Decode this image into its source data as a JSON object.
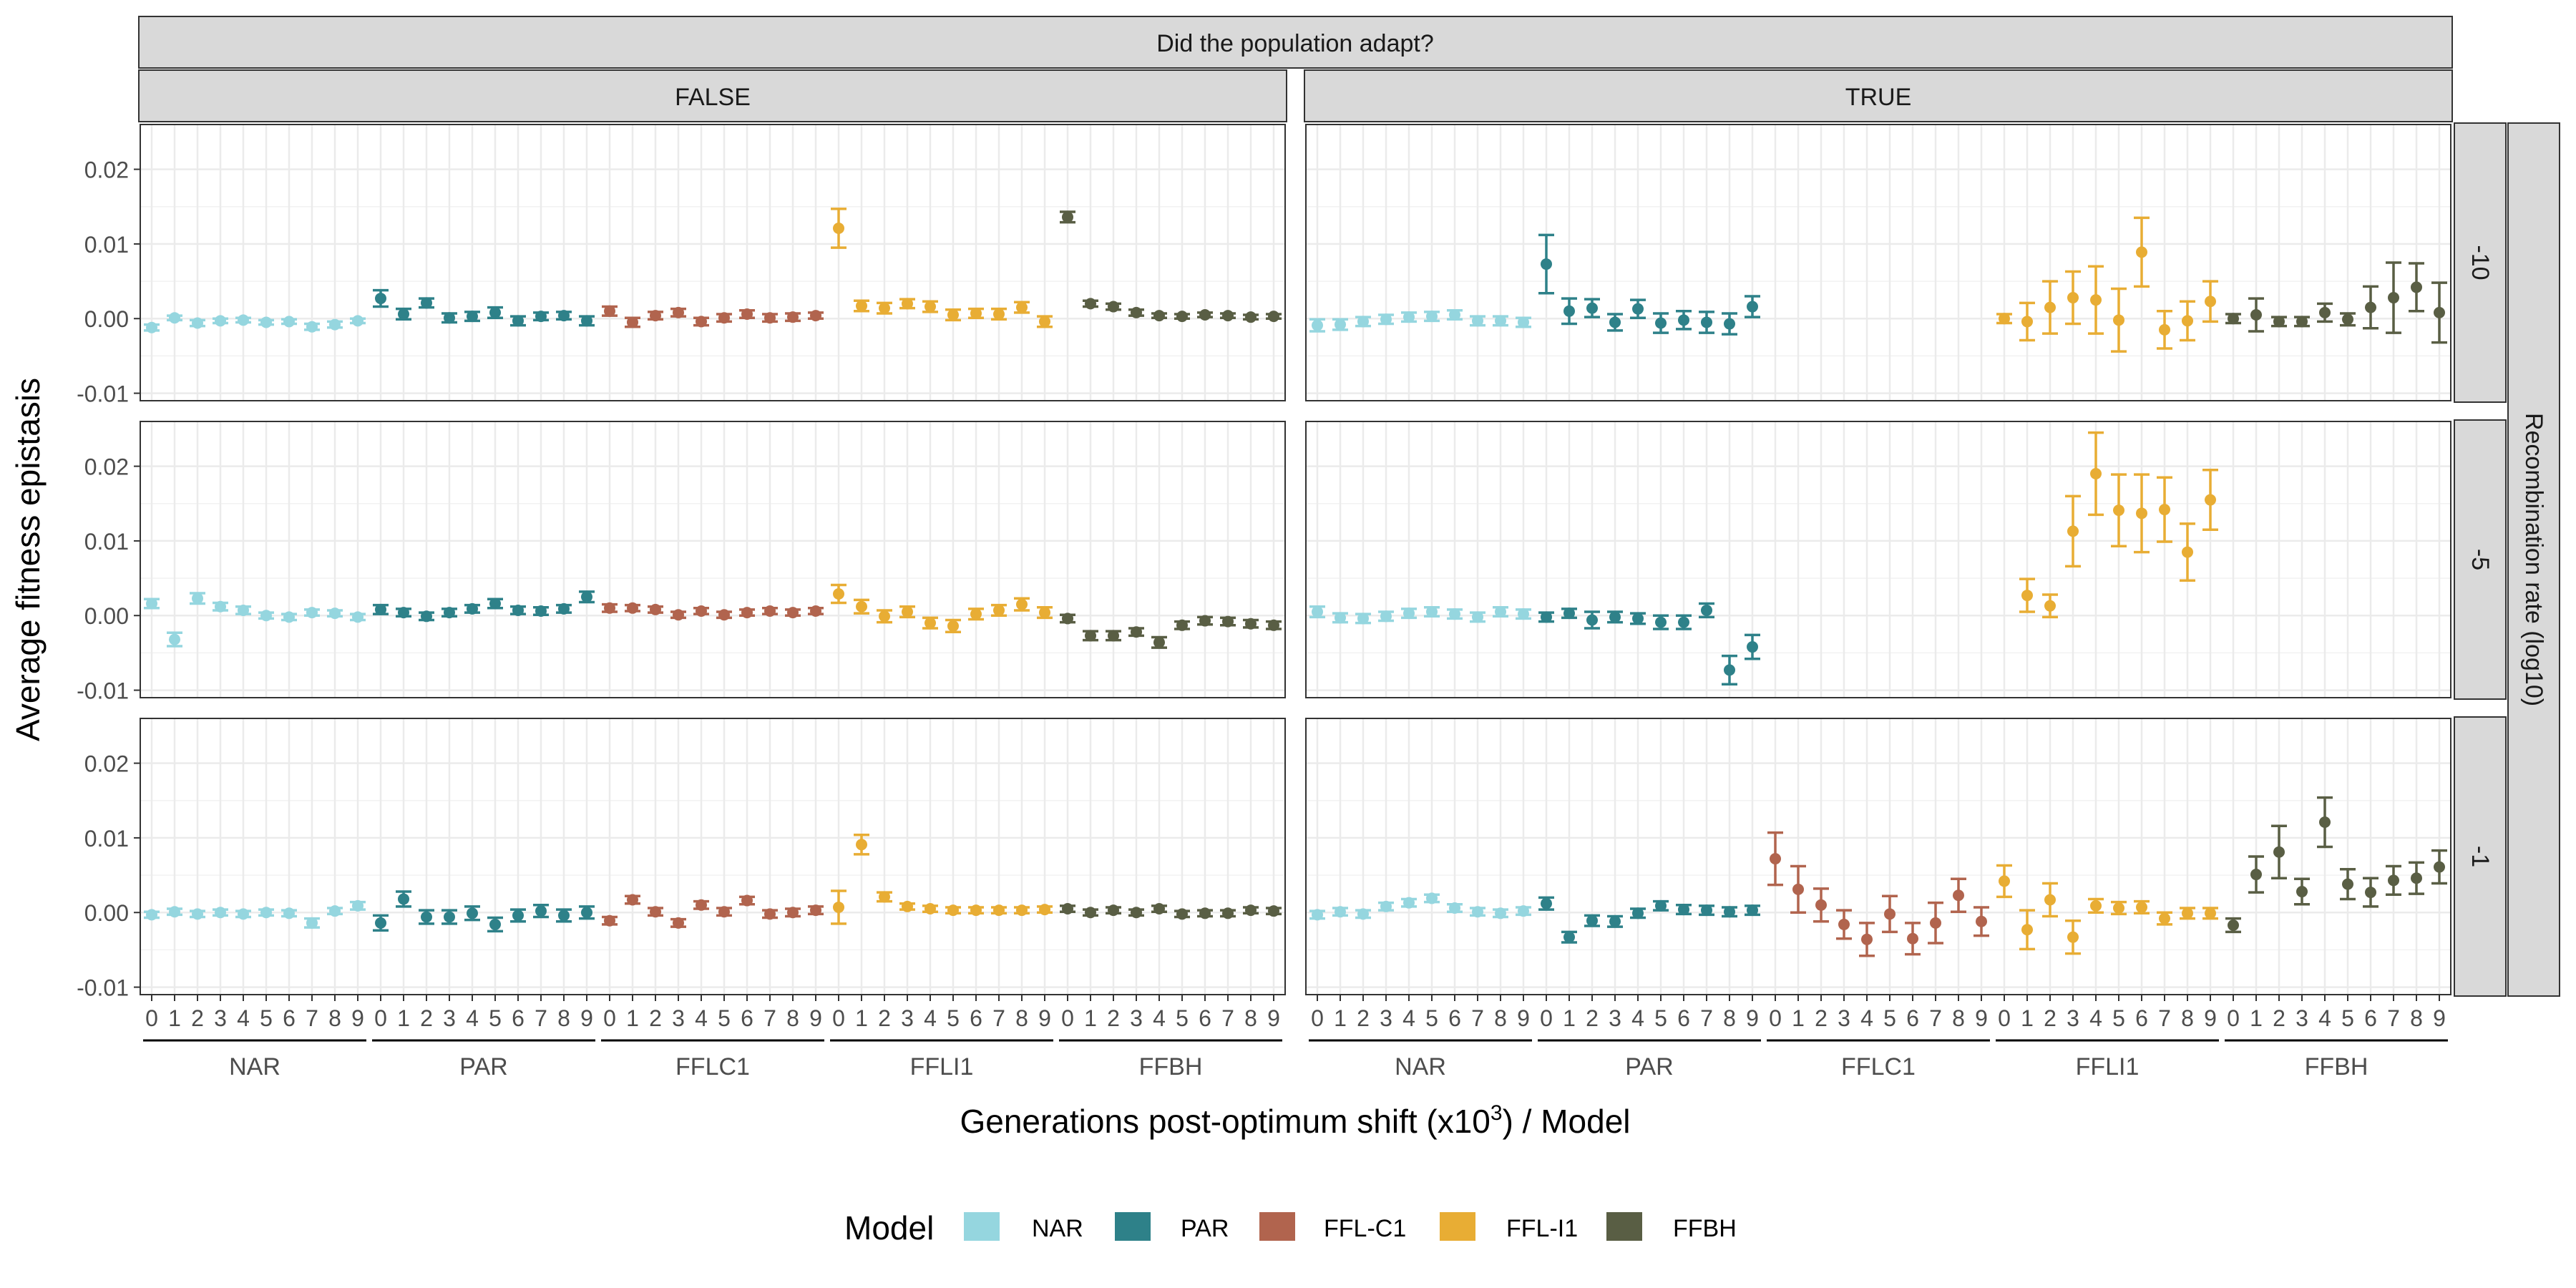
{
  "chart_data": {
    "type": "scatter",
    "top_strip": "Did the population adapt?",
    "col_strips": [
      "FALSE",
      "TRUE"
    ],
    "row_strips": [
      "-10",
      "-5",
      "-1"
    ],
    "row_strip_title": "Recombination rate (log10)",
    "ylabel": "Average fitness epistasis",
    "xlabel_prefix": "Generations post-optimum shift (x10",
    "xlabel_sup": "3",
    "xlabel_suffix": ") / Model",
    "yticks": [
      "0.02",
      "0.01",
      "0.00",
      "-0.01"
    ],
    "ylim": [
      -0.011,
      0.026
    ],
    "x_tick_labels": [
      "0",
      "1",
      "2",
      "3",
      "4",
      "5",
      "6",
      "7",
      "8",
      "9"
    ],
    "group_labels": [
      "NAR",
      "PAR",
      "FFLC1",
      "FFLI1",
      "FFBH"
    ],
    "legend_title": "Model",
    "legend_labels": [
      "NAR",
      "PAR",
      "FFL-C1",
      "FFL-I1",
      "FFBH"
    ],
    "colors": [
      "#95d6df",
      "#2e8189",
      "#b1644e",
      "#e8ad34",
      "#595e44"
    ],
    "panels": [
      {
        "adapted": "FALSE",
        "recombination": "-10",
        "series": [
          {
            "mean": [
              -0.0012,
              0.0001,
              -0.0006,
              -0.0003,
              -0.0002,
              -0.0005,
              -0.0004,
              -0.0011,
              -0.0008,
              -0.0003
            ],
            "err": [
              0.0004,
              0.0003,
              0.0004,
              0.0003,
              0.0003,
              0.0003,
              0.0003,
              0.0004,
              0.0004,
              0.0003
            ]
          },
          {
            "mean": [
              0.0027,
              0.0006,
              0.0021,
              0.0001,
              0.0003,
              0.0008,
              -0.0003,
              0.0003,
              0.0004,
              -0.0003
            ],
            "err": [
              0.0011,
              0.0007,
              0.0006,
              0.0006,
              0.0006,
              0.0007,
              0.0006,
              0.0005,
              0.0005,
              0.0006
            ]
          },
          {
            "mean": [
              0.001,
              -0.0005,
              0.0004,
              0.0008,
              -0.0004,
              0.0001,
              0.0006,
              0.0001,
              0.0002,
              0.0004
            ],
            "err": [
              0.0006,
              0.0006,
              0.0005,
              0.0005,
              0.0005,
              0.0005,
              0.0005,
              0.0005,
              0.0005,
              0.0004
            ]
          },
          {
            "mean": [
              0.0121,
              0.0017,
              0.0014,
              0.002,
              0.0016,
              0.0005,
              0.0007,
              0.0006,
              0.0015,
              -0.0004
            ],
            "err": [
              0.0026,
              0.0007,
              0.0007,
              0.0006,
              0.0007,
              0.0007,
              0.0006,
              0.0007,
              0.0007,
              0.0007
            ]
          },
          {
            "mean": [
              0.0136,
              0.002,
              0.0016,
              0.0008,
              0.0004,
              0.0003,
              0.0005,
              0.0004,
              0.0002,
              0.0003
            ],
            "err": [
              0.0007,
              0.0004,
              0.0004,
              0.0004,
              0.0003,
              0.0003,
              0.0003,
              0.0003,
              0.0003,
              0.0003
            ]
          }
        ]
      },
      {
        "adapted": "TRUE",
        "recombination": "-10",
        "series": [
          {
            "mean": [
              -0.0009,
              -0.0008,
              -0.0004,
              -0.0001,
              0.0002,
              0.0003,
              0.0005,
              -0.0003,
              -0.0003,
              -0.0005
            ],
            "err": [
              0.0008,
              0.0007,
              0.0006,
              0.0006,
              0.0006,
              0.0006,
              0.0006,
              0.0006,
              0.0006,
              0.0006
            ]
          },
          {
            "mean": [
              0.0073,
              0.001,
              0.0014,
              -0.0005,
              0.0013,
              -0.0006,
              -0.0002,
              -0.0005,
              -0.0007,
              0.0016
            ],
            "err": [
              0.0039,
              0.0017,
              0.0012,
              0.0011,
              0.0012,
              0.0013,
              0.0012,
              0.0014,
              0.0014,
              0.0014
            ]
          },
          {
            "mean": [],
            "err": []
          },
          {
            "mean": [
              0.0,
              -0.0004,
              0.0015,
              0.0028,
              0.0025,
              -0.0002,
              0.0089,
              -0.0015,
              -0.0003,
              0.0023
            ],
            "err": [
              0.0006,
              0.0025,
              0.0035,
              0.0035,
              0.0045,
              0.0042,
              0.0046,
              0.0025,
              0.0026,
              0.0027
            ]
          },
          {
            "mean": [
              0.0,
              0.0005,
              -0.0004,
              -0.0004,
              0.0008,
              -0.0001,
              0.0015,
              0.0028,
              0.0042,
              0.0008
            ],
            "err": [
              0.0006,
              0.0022,
              0.0006,
              0.0006,
              0.0012,
              0.0008,
              0.0028,
              0.0047,
              0.0032,
              0.004
            ]
          }
        ]
      },
      {
        "adapted": "FALSE",
        "recombination": "-5",
        "series": [
          {
            "mean": [
              0.0016,
              -0.0032,
              0.0023,
              0.0012,
              0.0007,
              0.0,
              -0.0002,
              0.0004,
              0.0003,
              -0.0002
            ],
            "err": [
              0.0006,
              0.0009,
              0.0007,
              0.0005,
              0.0005,
              0.0004,
              0.0004,
              0.0004,
              0.0004,
              0.0004
            ]
          },
          {
            "mean": [
              0.0008,
              0.0004,
              -0.0001,
              0.0004,
              0.0009,
              0.0016,
              0.0007,
              0.0006,
              0.0009,
              0.0025
            ],
            "err": [
              0.0006,
              0.0005,
              0.0005,
              0.0005,
              0.0005,
              0.0006,
              0.0005,
              0.0005,
              0.0005,
              0.0007
            ]
          },
          {
            "mean": [
              0.001,
              0.001,
              0.0008,
              0.0001,
              0.0006,
              0.0001,
              0.0004,
              0.0006,
              0.0004,
              0.0006
            ],
            "err": [
              0.0005,
              0.0004,
              0.0004,
              0.0004,
              0.0004,
              0.0004,
              0.0004,
              0.0004,
              0.0004,
              0.0004
            ]
          },
          {
            "mean": [
              0.0029,
              0.0012,
              -0.0001,
              0.0005,
              -0.001,
              -0.0014,
              0.0002,
              0.0007,
              0.0015,
              0.0004
            ],
            "err": [
              0.0012,
              0.0009,
              0.0008,
              0.0007,
              0.0007,
              0.0008,
              0.0007,
              0.0007,
              0.0008,
              0.0007
            ]
          },
          {
            "mean": [
              -0.0004,
              -0.0027,
              -0.0027,
              -0.0022,
              -0.0036,
              -0.0013,
              -0.0007,
              -0.0008,
              -0.0011,
              -0.0013
            ],
            "err": [
              0.0005,
              0.0006,
              0.0006,
              0.0005,
              0.0007,
              0.0005,
              0.0005,
              0.0005,
              0.0005,
              0.0005
            ]
          }
        ]
      },
      {
        "adapted": "TRUE",
        "recombination": "-5",
        "series": [
          {
            "mean": [
              0.0005,
              -0.0003,
              -0.0004,
              -0.0001,
              0.0003,
              0.0005,
              0.0002,
              -0.0002,
              0.0005,
              0.0002
            ],
            "err": [
              0.0007,
              0.0006,
              0.0006,
              0.0006,
              0.0006,
              0.0006,
              0.0006,
              0.0006,
              0.0006,
              0.0006
            ]
          },
          {
            "mean": [
              -0.0002,
              0.0003,
              -0.0006,
              -0.0002,
              -0.0004,
              -0.0009,
              -0.0009,
              0.0007,
              -0.0073,
              -0.0042
            ],
            "err": [
              0.0006,
              0.0006,
              0.0011,
              0.0007,
              0.0007,
              0.0009,
              0.0009,
              0.0009,
              0.0019,
              0.0016
            ]
          },
          {
            "mean": [],
            "err": []
          },
          {
            "mean": [
              0.0027,
              0.0013,
              0.0113,
              0.019,
              0.0141,
              0.0137,
              0.0142,
              0.0085,
              0.0155
            ],
            "err": [
              0.0022,
              0.0015,
              0.0047,
              0.0055,
              0.0048,
              0.0052,
              0.0043,
              0.0038,
              0.004
            ],
            "x": [
              1,
              2,
              3,
              4,
              5,
              6,
              7,
              8,
              9
            ]
          },
          {
            "mean": [],
            "err": []
          }
        ]
      },
      {
        "adapted": "FALSE",
        "recombination": "-1",
        "series": [
          {
            "mean": [
              -0.0003,
              0.0001,
              -0.0002,
              0.0,
              -0.0002,
              0.0,
              -0.0001,
              -0.0014,
              0.0002,
              0.0009
            ],
            "err": [
              0.0004,
              0.0004,
              0.0004,
              0.0004,
              0.0004,
              0.0004,
              0.0004,
              0.0006,
              0.0004,
              0.0005
            ]
          },
          {
            "mean": [
              -0.0014,
              0.0018,
              -0.0006,
              -0.0006,
              -0.0001,
              -0.0016,
              -0.0004,
              0.0002,
              -0.0004,
              0.0
            ],
            "err": [
              0.001,
              0.001,
              0.0009,
              0.0009,
              0.0009,
              0.0009,
              0.0008,
              0.0008,
              0.0008,
              0.0008
            ]
          },
          {
            "mean": [
              -0.0011,
              0.0017,
              0.0001,
              -0.0014,
              0.001,
              0.0001,
              0.0016,
              -0.0002,
              0.0,
              0.0003
            ],
            "err": [
              0.0005,
              0.0005,
              0.0005,
              0.0005,
              0.0005,
              0.0005,
              0.0005,
              0.0005,
              0.0005,
              0.0005
            ]
          },
          {
            "mean": [
              0.0007,
              0.0091,
              0.0021,
              0.0008,
              0.0005,
              0.0003,
              0.0003,
              0.0003,
              0.0003,
              0.0004
            ],
            "err": [
              0.0022,
              0.0013,
              0.0006,
              0.0004,
              0.0004,
              0.0004,
              0.0004,
              0.0004,
              0.0004,
              0.0004
            ]
          },
          {
            "mean": [
              0.0005,
              0.0,
              0.0003,
              0.0,
              0.0005,
              -0.0002,
              -0.0001,
              -0.0001,
              0.0003,
              0.0002
            ],
            "err": [
              0.0004,
              0.0004,
              0.0004,
              0.0004,
              0.0004,
              0.0004,
              0.0004,
              0.0004,
              0.0004,
              0.0004
            ]
          }
        ]
      },
      {
        "adapted": "TRUE",
        "recombination": "-1",
        "series": [
          {
            "mean": [
              -0.0003,
              0.0001,
              -0.0002,
              0.0008,
              0.0013,
              0.0019,
              0.0006,
              0.0001,
              -0.0001,
              0.0002
            ],
            "err": [
              0.0005,
              0.0005,
              0.0005,
              0.0005,
              0.0005,
              0.0005,
              0.0005,
              0.0005,
              0.0005,
              0.0005
            ]
          },
          {
            "mean": [
              0.0012,
              -0.0033,
              -0.0011,
              -0.0012,
              -0.0001,
              0.0009,
              0.0004,
              0.0003,
              0.0001,
              0.0003
            ],
            "err": [
              0.0008,
              0.0007,
              0.0007,
              0.0007,
              0.0006,
              0.0006,
              0.0006,
              0.0006,
              0.0006,
              0.0006
            ]
          },
          {
            "mean": [
              0.0072,
              0.0031,
              0.001,
              -0.0016,
              -0.0036,
              -0.0002,
              -0.0035,
              -0.0014,
              0.0023,
              -0.0012
            ],
            "err": [
              0.0035,
              0.0031,
              0.0022,
              0.0019,
              0.0022,
              0.0024,
              0.0021,
              0.0027,
              0.0022,
              0.0019
            ]
          },
          {
            "mean": [
              0.0042,
              -0.0023,
              0.0017,
              -0.0033,
              0.0009,
              0.0006,
              0.0007,
              -0.0008,
              -0.0001,
              -0.0001
            ],
            "err": [
              0.0021,
              0.0026,
              0.0022,
              0.0022,
              0.0009,
              0.0008,
              0.0008,
              0.0008,
              0.0007,
              0.0007
            ]
          },
          {
            "mean": [
              -0.0017,
              0.0051,
              0.0081,
              0.0028,
              0.0121,
              0.0038,
              0.0027,
              0.0043,
              0.0046,
              0.0061
            ],
            "err": [
              0.0009,
              0.0024,
              0.0035,
              0.0017,
              0.0033,
              0.002,
              0.0019,
              0.0019,
              0.0021,
              0.0022
            ]
          }
        ]
      }
    ]
  }
}
